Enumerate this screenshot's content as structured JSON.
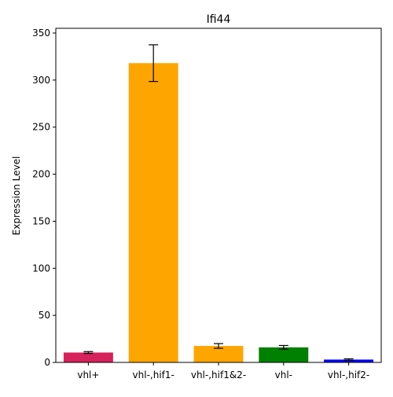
{
  "chart_data": {
    "type": "bar",
    "title": "Ifi44",
    "xlabel": "",
    "ylabel": "Expression Level",
    "categories": [
      "vhl+",
      "vhl-,hif1-",
      "vhl-,hif1&2-",
      "vhl-",
      "vhl-,hif2-"
    ],
    "values": [
      10.5,
      318,
      17.5,
      16,
      3
    ],
    "errors": [
      1.0,
      19.5,
      2.5,
      2.0,
      0.8
    ],
    "colors": [
      "#d6215b",
      "#ffa500",
      "#ffa500",
      "#008000",
      "#0000ff"
    ],
    "ylim": [
      0,
      355
    ],
    "yticks": [
      0,
      50,
      100,
      150,
      200,
      250,
      300,
      350
    ],
    "grid": false,
    "legend": "none"
  }
}
